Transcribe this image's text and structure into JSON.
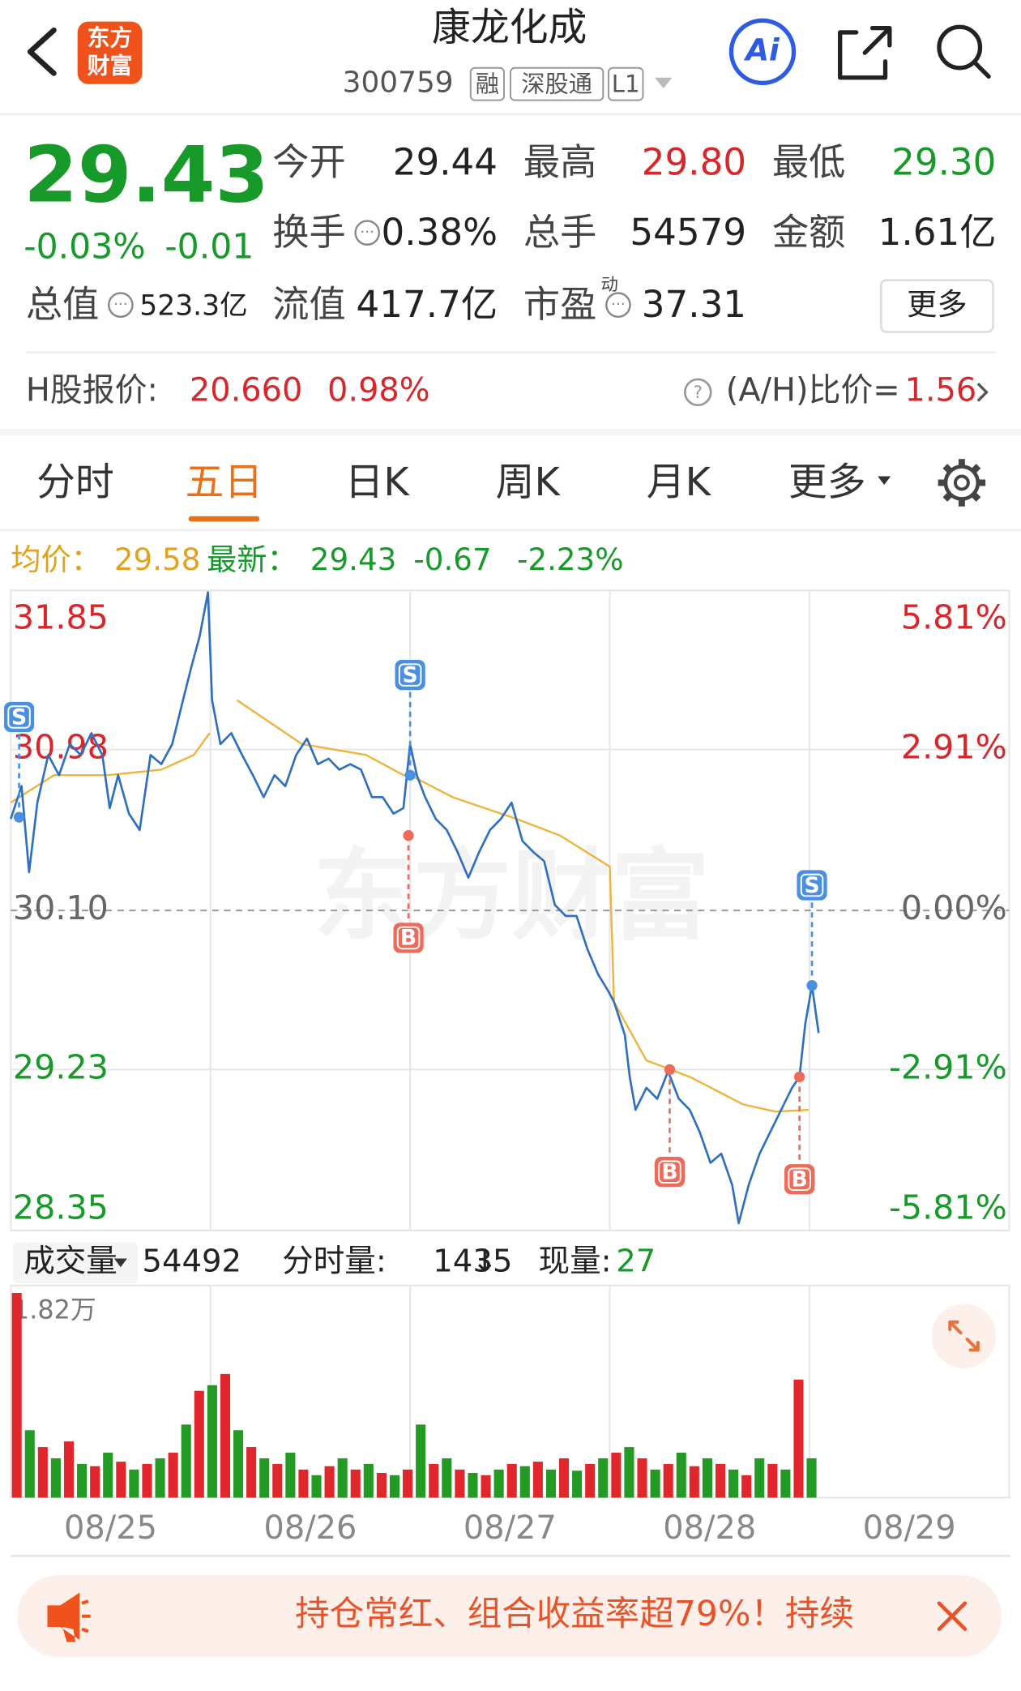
{
  "header": {
    "title": "康龙化成",
    "code": "300759",
    "tags": [
      "融",
      "深股通",
      "L1"
    ],
    "logo": [
      "东方",
      "财富"
    ],
    "ai": "Ai"
  },
  "quote": {
    "price": "29.43",
    "change_pct": "-0.03%",
    "change": "-0.01",
    "rows": [
      [
        {
          "label": "今开",
          "value": "29.44"
        },
        {
          "label": "最高",
          "value": "29.80",
          "tone": "up"
        },
        {
          "label": "最低",
          "value": "29.30",
          "tone": "down"
        }
      ],
      [
        {
          "label": "换手",
          "value": "0.38%",
          "info": true
        },
        {
          "label": "总手",
          "value": "54579"
        },
        {
          "label": "金额",
          "value": "1.61亿"
        }
      ],
      [
        {
          "label": "总值",
          "value": "523.3亿",
          "info": true,
          "small": true
        },
        {
          "label": "流值",
          "value": "417.7亿"
        },
        {
          "label": "市盈",
          "sup": "动",
          "value": "37.31",
          "info": true
        }
      ]
    ],
    "more": "更多"
  },
  "h_share": {
    "label": "H股报价:",
    "price": "20.660",
    "pct": "0.98%",
    "ratio_label": "(A/H)比价=",
    "ratio": "1.56"
  },
  "tabs": {
    "items": [
      "分时",
      "五日",
      "日K",
      "周K",
      "月K",
      "更多"
    ],
    "active": 1
  },
  "info": {
    "avg_label": "均价：",
    "avg": "29.58",
    "latest_label": "最新：",
    "latest": "29.43",
    "change": "-0.67",
    "change_pct": "-2.23%"
  },
  "chart": {
    "days": 5,
    "minutes_per_day": 240,
    "ylim": [
      28.35,
      31.85
    ],
    "yticks": [
      31.85,
      30.98,
      {
        "value": 30.1,
        "label": "30.10"
      },
      29.23,
      28.35
    ],
    "y2ticks": [
      {
        "value": 5.81,
        "label": "5.81%"
      },
      {
        "value": 2.91,
        "label": "2.91%"
      },
      {
        "value": 0,
        "label": "0.00%"
      },
      {
        "value": -2.91,
        "label": "-2.91%"
      },
      {
        "value": -5.81,
        "label": "-5.81%"
      }
    ],
    "watermark": "东方财富",
    "price_line": {
      "color": "#2f6fc0",
      "x": [
        0,
        13,
        22,
        32,
        45,
        58,
        71,
        84,
        97,
        110,
        119,
        129,
        142,
        155,
        168,
        181,
        194,
        207,
        217,
        227,
        237,
        242,
        252,
        265,
        278,
        291,
        304,
        317,
        330,
        343,
        356,
        369,
        382,
        395,
        408,
        421,
        434,
        447,
        460,
        472,
        480,
        488,
        498,
        511,
        524,
        537,
        550,
        563,
        576,
        589,
        602,
        615,
        628,
        641,
        654,
        667,
        680,
        693,
        706,
        718,
        725,
        738,
        744,
        751,
        764,
        777,
        790,
        803,
        816,
        828,
        841,
        854,
        867,
        875,
        887,
        900,
        913,
        926,
        939,
        948,
        955,
        963,
        971
      ],
      "values": [
        30.6,
        30.78,
        30.31,
        30.69,
        30.95,
        30.84,
        31.01,
        30.95,
        31.07,
        30.95,
        30.66,
        30.84,
        30.63,
        30.54,
        30.95,
        30.9,
        31.01,
        31.25,
        31.43,
        31.6,
        31.84,
        31.25,
        31.01,
        31.07,
        30.95,
        30.84,
        30.72,
        30.84,
        30.78,
        30.95,
        31.04,
        30.9,
        30.93,
        30.87,
        30.9,
        30.87,
        30.72,
        30.72,
        30.63,
        30.66,
        31.01,
        30.84,
        30.72,
        30.6,
        30.54,
        30.42,
        30.28,
        30.42,
        30.54,
        30.6,
        30.69,
        30.48,
        30.42,
        30.37,
        30.13,
        30.07,
        30.07,
        29.89,
        29.75,
        29.66,
        29.6,
        29.42,
        29.19,
        29.01,
        29.13,
        29.07,
        29.22,
        29.07,
        29.01,
        28.89,
        28.72,
        28.77,
        28.6,
        28.39,
        28.6,
        28.77,
        28.89,
        29.01,
        29.13,
        29.19,
        29.48,
        29.69,
        29.43
      ]
    },
    "avg_line": {
      "color": "#f0b43c",
      "x": [
        0,
        52,
        117,
        181,
        220,
        239,
        246,
        272,
        350,
        427,
        472,
        480,
        531,
        608,
        660,
        720,
        725,
        764,
        816,
        880,
        919,
        959
      ],
      "values": [
        30.69,
        30.84,
        30.84,
        30.87,
        30.95,
        31.07,
        null,
        31.25,
        31.01,
        30.95,
        30.84,
        30.84,
        30.72,
        30.6,
        30.51,
        30.34,
        29.6,
        29.28,
        29.19,
        29.04,
        29.0,
        29.01
      ]
    },
    "markers": [
      {
        "label": "S",
        "x": 10,
        "value": 30.61
      },
      {
        "label": "S",
        "x": 480,
        "value": 30.84
      },
      {
        "label": "B",
        "x": 478,
        "value": 30.51
      },
      {
        "label": "B",
        "x": 792,
        "value": 29.23
      },
      {
        "label": "B",
        "x": 948,
        "value": 29.19
      },
      {
        "label": "S",
        "x": 963,
        "value": 29.69
      }
    ],
    "dates": [
      "08/25",
      "08/26",
      "08/27",
      "08/28",
      "08/29"
    ]
  },
  "volume": {
    "label": "成交量",
    "total": "54492",
    "minute_label": "分时量:",
    "minute": "1435",
    "minute_trend": "↓",
    "current_label": "现量:",
    "current": "27",
    "max_label": "1.82万",
    "ylim": [
      0,
      18200
    ],
    "up_color": "#e0282c",
    "down_color": "#239a23",
    "values": [
      18200,
      6000,
      4500,
      3500,
      5000,
      3000,
      2800,
      4000,
      3200,
      2500,
      3000,
      3500,
      4000,
      6500,
      9500,
      10000,
      11000,
      6000,
      4500,
      3500,
      3000,
      4000,
      2500,
      2000,
      2800,
      3500,
      2500,
      3000,
      2200,
      2000,
      2500,
      6500,
      3000,
      3500,
      2500,
      2200,
      2000,
      2500,
      3000,
      2800,
      3200,
      2500,
      3500,
      2400,
      3000,
      3500,
      4000,
      4500,
      3500,
      2500,
      3000,
      4000,
      2800,
      3500,
      3000,
      2500,
      2000,
      3500,
      3000,
      2500,
      10500,
      3500
    ]
  },
  "banner": {
    "text": "持仓常红、组合收益率超79%！持续"
  }
}
